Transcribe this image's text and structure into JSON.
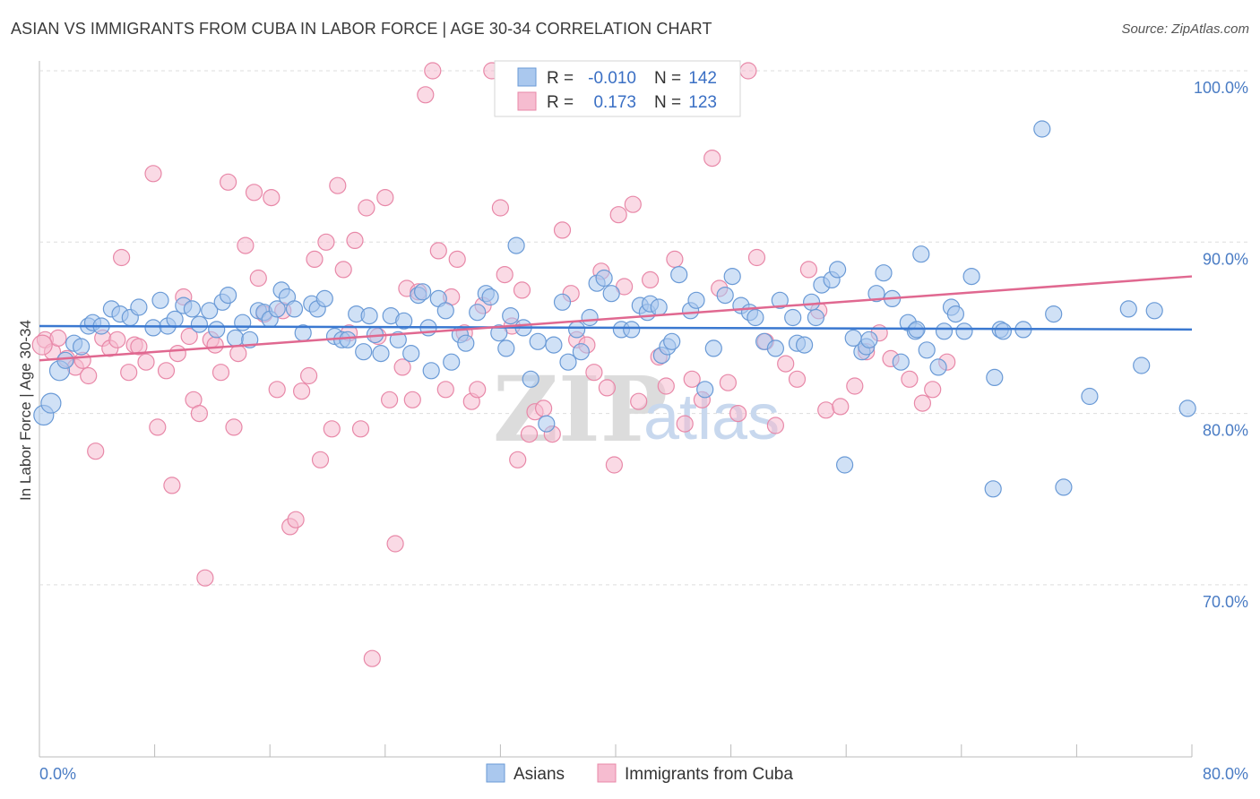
{
  "header": {
    "title": "ASIAN VS IMMIGRANTS FROM CUBA IN LABOR FORCE | AGE 30-34 CORRELATION CHART",
    "source": "Source: ZipAtlas.com"
  },
  "watermark": {
    "zip": "ZIP",
    "atlas": "atlas"
  },
  "legend_top": {
    "r_label": "R =",
    "n_label": "N =",
    "rows": [
      {
        "r": "-0.010",
        "n": "142"
      },
      {
        "r": "0.173",
        "n": "123"
      }
    ]
  },
  "colors": {
    "asians_fill": "#aac8ee",
    "asians_stroke": "#6a9ad6",
    "asians_line": "#3a78d0",
    "cuba_fill": "#f6bcd0",
    "cuba_stroke": "#e888a8",
    "cuba_line": "#e06890",
    "value_text": "#3a6fc4",
    "grid": "#dddddd"
  },
  "chart_data": {
    "type": "scatter",
    "title": "ASIAN VS IMMIGRANTS FROM CUBA IN LABOR FORCE | AGE 30-34 CORRELATION CHART",
    "xlabel": "",
    "ylabel": "In Labor Force | Age 30-34",
    "xlim": [
      0,
      80
    ],
    "ylim": [
      60,
      102
    ],
    "x_tick_labels": [
      "0.0%",
      "80.0%"
    ],
    "y_ticks": [
      70,
      80,
      90,
      100
    ],
    "y_tick_labels": [
      "70.0%",
      "80.0%",
      "90.0%",
      "100.0%"
    ],
    "series": [
      {
        "name": "Asians",
        "R": -0.01,
        "N": 142,
        "trend": {
          "x": [
            0,
            80
          ],
          "y": [
            85.1,
            84.9
          ]
        },
        "points": [
          [
            0.3,
            79.9
          ],
          [
            0.8,
            80.6
          ],
          [
            1.4,
            82.5
          ],
          [
            1.8,
            83.1
          ],
          [
            2.4,
            84.1
          ],
          [
            2.9,
            83.9
          ],
          [
            3.4,
            85.1
          ],
          [
            3.7,
            85.3
          ],
          [
            4.3,
            85.1
          ],
          [
            5.0,
            86.1
          ],
          [
            5.6,
            85.8
          ],
          [
            6.3,
            85.6
          ],
          [
            6.9,
            86.2
          ],
          [
            7.9,
            85.0
          ],
          [
            8.4,
            86.6
          ],
          [
            8.9,
            85.1
          ],
          [
            9.4,
            85.5
          ],
          [
            10.0,
            86.3
          ],
          [
            10.6,
            86.1
          ],
          [
            11.1,
            85.2
          ],
          [
            11.8,
            86.0
          ],
          [
            12.3,
            84.9
          ],
          [
            12.7,
            86.5
          ],
          [
            13.1,
            86.9
          ],
          [
            13.6,
            84.4
          ],
          [
            14.1,
            85.3
          ],
          [
            14.6,
            84.3
          ],
          [
            15.2,
            86.0
          ],
          [
            15.6,
            85.9
          ],
          [
            16.0,
            85.5
          ],
          [
            16.5,
            86.1
          ],
          [
            16.8,
            87.2
          ],
          [
            17.2,
            86.8
          ],
          [
            17.7,
            86.1
          ],
          [
            18.3,
            84.7
          ],
          [
            18.9,
            86.4
          ],
          [
            19.3,
            86.1
          ],
          [
            19.8,
            86.7
          ],
          [
            20.5,
            84.5
          ],
          [
            21.0,
            84.3
          ],
          [
            21.4,
            84.3
          ],
          [
            22.0,
            85.8
          ],
          [
            22.5,
            83.6
          ],
          [
            22.9,
            85.7
          ],
          [
            23.3,
            84.6
          ],
          [
            23.7,
            83.5
          ],
          [
            24.4,
            85.7
          ],
          [
            24.9,
            84.3
          ],
          [
            25.3,
            85.4
          ],
          [
            25.8,
            83.5
          ],
          [
            26.3,
            86.9
          ],
          [
            26.6,
            87.1
          ],
          [
            27.2,
            82.5
          ],
          [
            27.7,
            86.7
          ],
          [
            28.2,
            86.0
          ],
          [
            28.6,
            83.0
          ],
          [
            29.2,
            84.6
          ],
          [
            29.6,
            84.1
          ],
          [
            30.4,
            85.9
          ],
          [
            31.0,
            87.0
          ],
          [
            31.3,
            86.8
          ],
          [
            31.9,
            84.7
          ],
          [
            32.4,
            83.8
          ],
          [
            32.7,
            85.7
          ],
          [
            33.1,
            89.8
          ],
          [
            33.6,
            85.0
          ],
          [
            34.1,
            82.0
          ],
          [
            34.6,
            84.2
          ],
          [
            35.2,
            79.4
          ],
          [
            35.7,
            84.0
          ],
          [
            36.3,
            86.5
          ],
          [
            36.7,
            83.0
          ],
          [
            37.3,
            84.9
          ],
          [
            37.6,
            83.6
          ],
          [
            38.2,
            85.6
          ],
          [
            38.7,
            87.6
          ],
          [
            39.2,
            87.9
          ],
          [
            39.7,
            87.0
          ],
          [
            40.4,
            84.9
          ],
          [
            41.1,
            84.9
          ],
          [
            41.7,
            86.3
          ],
          [
            42.2,
            85.9
          ],
          [
            42.4,
            86.4
          ],
          [
            43.0,
            86.2
          ],
          [
            43.2,
            83.4
          ],
          [
            43.6,
            83.9
          ],
          [
            43.9,
            84.2
          ],
          [
            44.4,
            88.1
          ],
          [
            45.2,
            86.0
          ],
          [
            45.6,
            86.6
          ],
          [
            46.2,
            81.4
          ],
          [
            46.8,
            83.8
          ],
          [
            47.6,
            86.9
          ],
          [
            48.1,
            88.0
          ],
          [
            48.7,
            86.3
          ],
          [
            49.3,
            85.9
          ],
          [
            49.7,
            85.6
          ],
          [
            50.3,
            84.2
          ],
          [
            51.1,
            83.8
          ],
          [
            51.4,
            86.6
          ],
          [
            52.3,
            85.6
          ],
          [
            52.6,
            84.1
          ],
          [
            53.1,
            84.0
          ],
          [
            53.6,
            86.5
          ],
          [
            53.9,
            85.6
          ],
          [
            54.3,
            87.5
          ],
          [
            55.0,
            87.8
          ],
          [
            55.4,
            88.4
          ],
          [
            55.9,
            77.0
          ],
          [
            56.5,
            84.4
          ],
          [
            57.1,
            83.6
          ],
          [
            57.4,
            83.9
          ],
          [
            58.1,
            87.0
          ],
          [
            58.6,
            88.2
          ],
          [
            59.2,
            86.7
          ],
          [
            59.8,
            83.0
          ],
          [
            60.3,
            85.3
          ],
          [
            60.8,
            84.8
          ],
          [
            61.2,
            89.3
          ],
          [
            61.6,
            83.7
          ],
          [
            62.4,
            82.7
          ],
          [
            63.3,
            86.2
          ],
          [
            63.6,
            85.8
          ],
          [
            64.2,
            84.8
          ],
          [
            64.7,
            88.0
          ],
          [
            66.3,
            82.1
          ],
          [
            66.7,
            84.9
          ],
          [
            66.9,
            84.8
          ],
          [
            68.3,
            84.9
          ],
          [
            70.4,
            85.8
          ],
          [
            72.9,
            81.0
          ],
          [
            77.4,
            86.0
          ],
          [
            57.6,
            84.3
          ],
          [
            60.9,
            84.9
          ],
          [
            66.2,
            75.6
          ],
          [
            69.6,
            96.6
          ],
          [
            71.1,
            75.7
          ],
          [
            75.6,
            86.1
          ],
          [
            79.7,
            80.3
          ],
          [
            76.5,
            82.8
          ],
          [
            62.8,
            84.8
          ],
          [
            27.0,
            85.0
          ]
        ]
      },
      {
        "name": "Immigrants from Cuba",
        "R": 0.173,
        "N": 123,
        "trend": {
          "x": [
            0,
            80
          ],
          "y": [
            83.1,
            88.0
          ]
        },
        "points": [
          [
            0.4,
            84.3
          ],
          [
            0.9,
            83.6
          ],
          [
            1.3,
            84.4
          ],
          [
            1.9,
            83.2
          ],
          [
            2.5,
            82.7
          ],
          [
            3.0,
            83.1
          ],
          [
            3.4,
            82.2
          ],
          [
            3.9,
            77.8
          ],
          [
            4.4,
            84.4
          ],
          [
            4.9,
            83.8
          ],
          [
            5.4,
            84.3
          ],
          [
            5.7,
            89.1
          ],
          [
            6.2,
            82.4
          ],
          [
            6.6,
            84.0
          ],
          [
            6.9,
            83.9
          ],
          [
            7.4,
            83.0
          ],
          [
            7.9,
            94.0
          ],
          [
            8.2,
            79.2
          ],
          [
            8.8,
            82.5
          ],
          [
            9.2,
            75.8
          ],
          [
            9.6,
            83.5
          ],
          [
            10.0,
            86.8
          ],
          [
            10.4,
            84.5
          ],
          [
            10.7,
            80.8
          ],
          [
            11.1,
            80.0
          ],
          [
            11.5,
            70.4
          ],
          [
            11.9,
            84.3
          ],
          [
            12.2,
            84.0
          ],
          [
            12.6,
            82.4
          ],
          [
            13.1,
            93.5
          ],
          [
            13.5,
            79.2
          ],
          [
            13.8,
            83.5
          ],
          [
            14.3,
            89.8
          ],
          [
            14.9,
            92.9
          ],
          [
            15.2,
            87.9
          ],
          [
            15.6,
            85.8
          ],
          [
            16.1,
            92.6
          ],
          [
            16.5,
            81.4
          ],
          [
            16.9,
            86.0
          ],
          [
            17.4,
            73.4
          ],
          [
            17.8,
            73.8
          ],
          [
            18.2,
            81.3
          ],
          [
            18.7,
            82.2
          ],
          [
            19.1,
            89.0
          ],
          [
            19.5,
            77.3
          ],
          [
            19.9,
            90.0
          ],
          [
            20.3,
            79.1
          ],
          [
            20.7,
            93.3
          ],
          [
            21.1,
            88.4
          ],
          [
            21.5,
            84.7
          ],
          [
            21.9,
            90.1
          ],
          [
            22.3,
            79.1
          ],
          [
            22.7,
            92.0
          ],
          [
            23.1,
            65.7
          ],
          [
            23.5,
            84.5
          ],
          [
            24.0,
            92.6
          ],
          [
            24.3,
            80.8
          ],
          [
            24.7,
            72.4
          ],
          [
            25.2,
            82.7
          ],
          [
            25.5,
            87.3
          ],
          [
            25.9,
            80.8
          ],
          [
            26.3,
            87.1
          ],
          [
            26.8,
            98.6
          ],
          [
            27.3,
            100.0
          ],
          [
            27.7,
            89.5
          ],
          [
            28.2,
            81.4
          ],
          [
            28.6,
            86.8
          ],
          [
            29.0,
            89.0
          ],
          [
            29.5,
            84.7
          ],
          [
            30.0,
            80.7
          ],
          [
            30.4,
            81.4
          ],
          [
            30.8,
            86.3
          ],
          [
            31.4,
            100.0
          ],
          [
            32.0,
            92.0
          ],
          [
            32.3,
            88.1
          ],
          [
            32.8,
            85.1
          ],
          [
            33.2,
            77.3
          ],
          [
            33.5,
            87.2
          ],
          [
            34.0,
            78.8
          ],
          [
            34.4,
            80.1
          ],
          [
            35.0,
            80.3
          ],
          [
            35.6,
            78.8
          ],
          [
            36.3,
            90.7
          ],
          [
            36.9,
            87.0
          ],
          [
            37.3,
            84.3
          ],
          [
            38.0,
            84.0
          ],
          [
            38.5,
            82.4
          ],
          [
            39.0,
            88.3
          ],
          [
            39.4,
            81.5
          ],
          [
            39.9,
            77.0
          ],
          [
            40.2,
            91.6
          ],
          [
            40.6,
            87.4
          ],
          [
            41.2,
            92.2
          ],
          [
            41.6,
            80.7
          ],
          [
            42.4,
            87.8
          ],
          [
            43.0,
            83.3
          ],
          [
            43.5,
            81.6
          ],
          [
            44.1,
            89.0
          ],
          [
            44.8,
            79.4
          ],
          [
            45.3,
            82.0
          ],
          [
            46.0,
            80.8
          ],
          [
            46.7,
            94.9
          ],
          [
            47.2,
            87.3
          ],
          [
            47.8,
            81.8
          ],
          [
            48.5,
            80.0
          ],
          [
            49.2,
            100.0
          ],
          [
            49.8,
            89.1
          ],
          [
            50.4,
            84.2
          ],
          [
            51.1,
            79.3
          ],
          [
            51.8,
            82.9
          ],
          [
            52.6,
            82.0
          ],
          [
            53.4,
            88.4
          ],
          [
            54.1,
            86.0
          ],
          [
            54.6,
            80.2
          ],
          [
            55.6,
            80.4
          ],
          [
            56.6,
            81.6
          ],
          [
            57.4,
            83.6
          ],
          [
            58.3,
            84.7
          ],
          [
            59.1,
            83.2
          ],
          [
            60.4,
            82.0
          ],
          [
            61.3,
            80.6
          ],
          [
            62.0,
            81.4
          ],
          [
            63.0,
            83.0
          ]
        ]
      }
    ]
  },
  "legend_bottom": [
    "Asians",
    "Immigrants from Cuba"
  ]
}
